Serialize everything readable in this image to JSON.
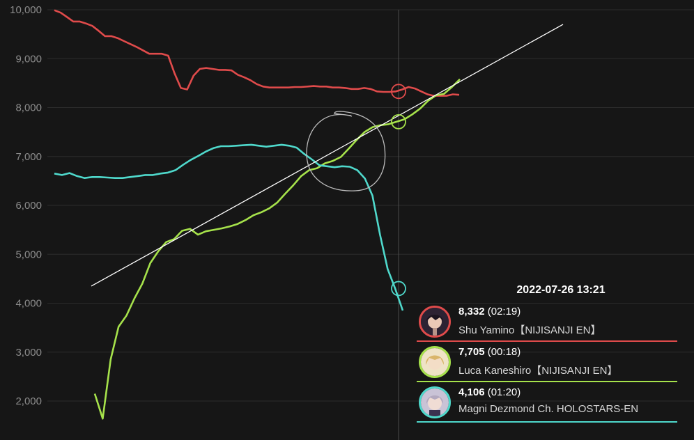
{
  "chart_data": {
    "type": "line",
    "ylim": [
      1500,
      10050
    ],
    "y_ticks": [
      "2,000",
      "3,000",
      "4,000",
      "5,000",
      "6,000",
      "7,000",
      "8,000",
      "9,000",
      "10,000"
    ],
    "grid": true,
    "series": [
      {
        "name": "Shu Yamino 【NIJISANJI EN】",
        "color": "#e04b4b",
        "values": [
          9990,
          9940,
          9850,
          9760,
          9760,
          9720,
          9670,
          9570,
          9460,
          9460,
          9420,
          9360,
          9300,
          9240,
          9170,
          9100,
          9100,
          9100,
          9060,
          8700,
          8400,
          8370,
          8650,
          8790,
          8810,
          8790,
          8770,
          8770,
          8760,
          8670,
          8620,
          8560,
          8480,
          8430,
          8410,
          8410,
          8410,
          8410,
          8420,
          8420,
          8430,
          8440,
          8430,
          8430,
          8410,
          8410,
          8400,
          8380,
          8380,
          8400,
          8380,
          8330,
          8320,
          8320,
          8330,
          8370,
          8420,
          8390,
          8330,
          8270,
          8240,
          8240,
          8240,
          8270,
          8260
        ]
      },
      {
        "name": "Luca Kaneshiro【NIJISANJI EN】",
        "color": "#a6e24b",
        "values": [
          2150,
          1640,
          2850,
          3520,
          3750,
          4100,
          4400,
          4820,
          5060,
          5250,
          5310,
          5480,
          5520,
          5400,
          5470,
          5500,
          5530,
          5570,
          5620,
          5700,
          5800,
          5860,
          5940,
          6060,
          6240,
          6410,
          6600,
          6720,
          6760,
          6860,
          6910,
          6990,
          7160,
          7340,
          7500,
          7600,
          7640,
          7660,
          7710,
          7760,
          7860,
          7980,
          8140,
          8250,
          8280,
          8420,
          8580
        ]
      },
      {
        "name": "Magni Dezmond Ch. HOLOSTARS-EN",
        "color": "#4fd9cc",
        "values": [
          6650,
          6620,
          6660,
          6600,
          6560,
          6580,
          6580,
          6570,
          6560,
          6560,
          6580,
          6600,
          6620,
          6620,
          6650,
          6670,
          6720,
          6830,
          6930,
          7010,
          7100,
          7170,
          7210,
          7210,
          7220,
          7230,
          7240,
          7220,
          7200,
          7220,
          7240,
          7220,
          7180,
          7050,
          6940,
          6820,
          6800,
          6780,
          6800,
          6790,
          6720,
          6550,
          6200,
          5400,
          4700,
          4300,
          3850
        ]
      }
    ],
    "trend_line": {
      "color": "#ffffff",
      "from": 4350,
      "to": 9700
    },
    "tooltip": {
      "time": "2022-07-26 13:21",
      "entries": [
        {
          "value": "8,332",
          "duration": "(02:19)",
          "name": "Shu Yamino【NIJISANJI EN】",
          "color": "#e04b4b"
        },
        {
          "value": "7,705",
          "duration": "(00:18)",
          "name": "Luca Kaneshiro【NIJISANJI EN】",
          "color": "#a6e24b"
        },
        {
          "value": "4,106",
          "duration": "(01:20)",
          "name": "Magni Dezmond Ch. HOLOSTARS-EN",
          "color": "#4fd9cc"
        }
      ]
    }
  }
}
